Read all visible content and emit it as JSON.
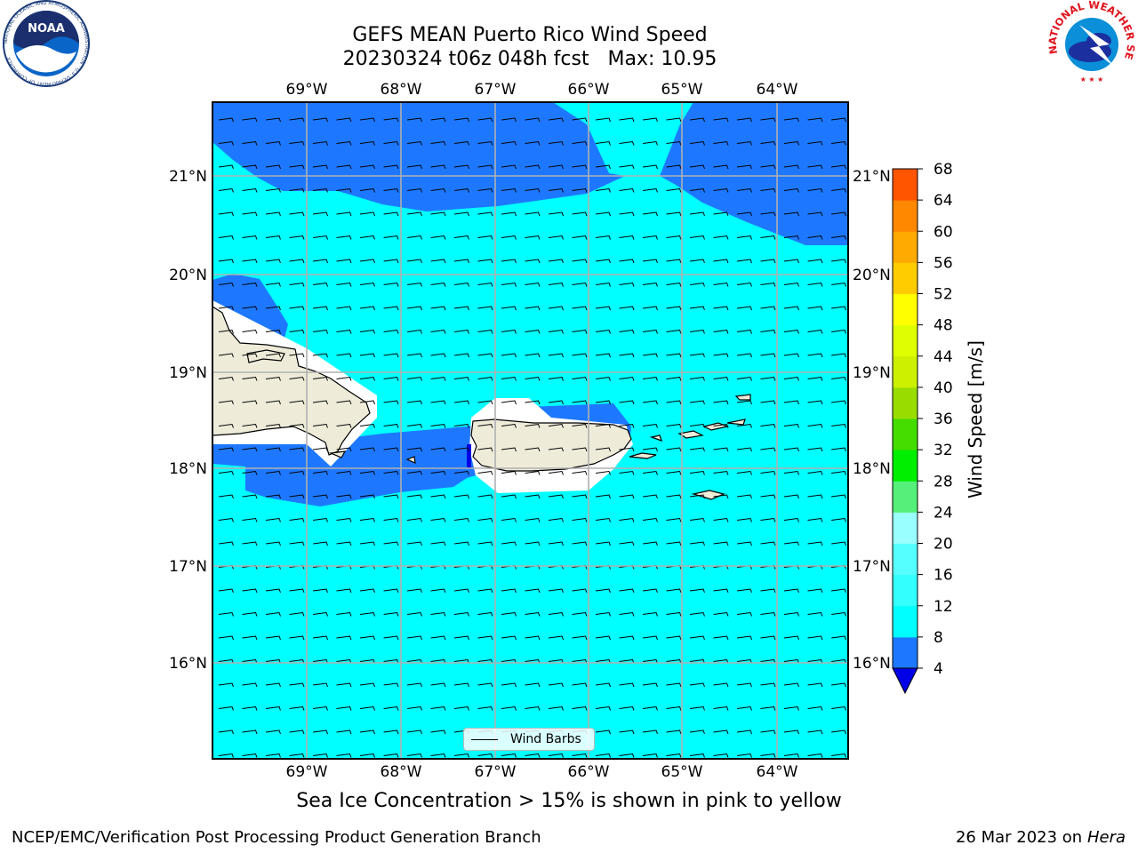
{
  "title": {
    "line1": "GEFS MEAN Puerto Rico Wind Speed",
    "line2": "20230324 t06z 048h fcst   Max: 10.95"
  },
  "logos": {
    "noaa_text": "NOAA",
    "noaa_ring": "NATIONAL OCEANIC AND ATMOSPHERIC ADMINISTRATION · U.S. DEPARTMENT OF COMMERCE",
    "nws_ring": "NATIONAL WEATHER SERVICE"
  },
  "map": {
    "lon_labels": [
      "69°W",
      "68°W",
      "67°W",
      "66°W",
      "65°W",
      "64°W"
    ],
    "lat_labels": [
      "21°N",
      "20°N",
      "19°N",
      "18°N",
      "17°N",
      "16°N"
    ],
    "colors": {
      "sea_light": "#00ffff",
      "sea_dark": "#1e78ff",
      "deep_blue": "#0000e6",
      "land": "#eeecd9",
      "grid": "#b0b0b0"
    },
    "legend_label": "Wind Barbs"
  },
  "colorbar": {
    "label": "Wind Speed [m/s]",
    "ticks": [
      "4",
      "8",
      "12",
      "16",
      "20",
      "24",
      "28",
      "32",
      "36",
      "40",
      "44",
      "48",
      "52",
      "56",
      "60",
      "64",
      "68"
    ],
    "colors": [
      "#1e78ff",
      "#00ffff",
      "#33ffff",
      "#55ffff",
      "#99ffff",
      "#55f07a",
      "#00ee00",
      "#44dd00",
      "#99dd00",
      "#ccf000",
      "#ddff00",
      "#ffff00",
      "#ffcc00",
      "#ffaa00",
      "#ff8800",
      "#ff5500",
      "#ff2200"
    ],
    "extend_color": "#0000e6"
  },
  "notes": {
    "sea_ice": "Sea Ice Concentration > 15% is shown in pink to yellow",
    "footer_left": "NCEP/EMC/Verification Post Processing Product Generation Branch",
    "footer_date": "26 Mar 2023 on",
    "footer_machine": "Hera"
  }
}
